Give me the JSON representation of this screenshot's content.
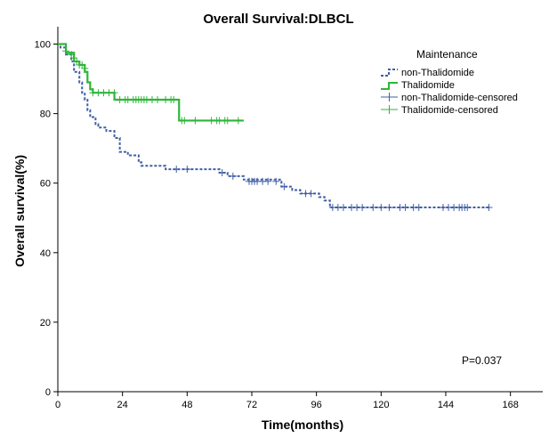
{
  "chart_data": {
    "type": "line",
    "subtype": "kaplan-meier-step",
    "title": "Overall Survival:DLBCL",
    "xlabel": "Time(months)",
    "ylabel": "Overall survival(%)",
    "xlim": [
      0,
      180
    ],
    "ylim": [
      0,
      105
    ],
    "xticks": [
      0,
      24,
      48,
      72,
      96,
      120,
      144,
      168
    ],
    "yticks": [
      0,
      20,
      40,
      60,
      80,
      100
    ],
    "legend": {
      "title": "Maintenance",
      "placement": "top-right",
      "entries": [
        "non-Thalidomide",
        "Thalidomide",
        "non-Thalidomide-censored",
        "Thalidomide-censored"
      ]
    },
    "annotation": "P=0.037",
    "series": [
      {
        "name": "non-Thalidomide",
        "color": "#3f5ea6",
        "dashed": true,
        "steps": [
          [
            0,
            100
          ],
          [
            1,
            99
          ],
          [
            3,
            97
          ],
          [
            5,
            95
          ],
          [
            6,
            92
          ],
          [
            8,
            89
          ],
          [
            9,
            86
          ],
          [
            10,
            84
          ],
          [
            11,
            81
          ],
          [
            12,
            79
          ],
          [
            14,
            77
          ],
          [
            15,
            76
          ],
          [
            18,
            75
          ],
          [
            21,
            73
          ],
          [
            23,
            69
          ],
          [
            26,
            68
          ],
          [
            30,
            66
          ],
          [
            31,
            65
          ],
          [
            40,
            64
          ],
          [
            60,
            63
          ],
          [
            63,
            62
          ],
          [
            69,
            61
          ],
          [
            83,
            59
          ],
          [
            87,
            58
          ],
          [
            90,
            57
          ],
          [
            97,
            56
          ],
          [
            99,
            55
          ],
          [
            101,
            53
          ],
          [
            160,
            53
          ]
        ],
        "censored": [
          [
            44,
            64
          ],
          [
            48,
            64
          ],
          [
            61,
            63
          ],
          [
            65,
            62
          ],
          [
            71,
            60.5
          ],
          [
            72,
            60.5
          ],
          [
            73,
            60.5
          ],
          [
            74,
            60.5
          ],
          [
            76,
            60.5
          ],
          [
            78,
            60.5
          ],
          [
            81,
            60.5
          ],
          [
            84,
            59
          ],
          [
            92,
            57
          ],
          [
            94,
            57
          ],
          [
            102,
            53
          ],
          [
            104,
            53
          ],
          [
            106,
            53
          ],
          [
            109,
            53
          ],
          [
            111,
            53
          ],
          [
            113,
            53
          ],
          [
            117,
            53
          ],
          [
            120,
            53
          ],
          [
            123,
            53
          ],
          [
            127,
            53
          ],
          [
            129,
            53
          ],
          [
            132,
            53
          ],
          [
            134,
            53
          ],
          [
            143,
            53
          ],
          [
            145,
            53
          ],
          [
            147,
            53
          ],
          [
            149,
            53
          ],
          [
            150,
            53
          ],
          [
            151,
            53
          ],
          [
            152,
            53
          ],
          [
            160,
            53
          ]
        ]
      },
      {
        "name": "Thalidomide",
        "color": "#2fb53a",
        "dashed": false,
        "steps": [
          [
            0,
            100
          ],
          [
            3,
            97.5
          ],
          [
            6,
            95
          ],
          [
            8,
            94
          ],
          [
            10,
            92
          ],
          [
            11,
            89
          ],
          [
            12,
            87
          ],
          [
            13,
            86
          ],
          [
            21,
            84
          ],
          [
            45,
            78
          ],
          [
            69,
            78
          ]
        ],
        "censored": [
          [
            3,
            98
          ],
          [
            5,
            97
          ],
          [
            6,
            96
          ],
          [
            7,
            95
          ],
          [
            8,
            94
          ],
          [
            9,
            94
          ],
          [
            10,
            93
          ],
          [
            13,
            86
          ],
          [
            15,
            86
          ],
          [
            17,
            86
          ],
          [
            19,
            86
          ],
          [
            21,
            86
          ],
          [
            23,
            84
          ],
          [
            25,
            84
          ],
          [
            26,
            84
          ],
          [
            28,
            84
          ],
          [
            29,
            84
          ],
          [
            30,
            84
          ],
          [
            31,
            84
          ],
          [
            32,
            84
          ],
          [
            33,
            84
          ],
          [
            35,
            84
          ],
          [
            37,
            84
          ],
          [
            40,
            84
          ],
          [
            42,
            84
          ],
          [
            43,
            84
          ],
          [
            46,
            78
          ],
          [
            47,
            78
          ],
          [
            51,
            78
          ],
          [
            57,
            78
          ],
          [
            59,
            78
          ],
          [
            60,
            78
          ],
          [
            62,
            78
          ],
          [
            63,
            78
          ],
          [
            67,
            78
          ]
        ]
      }
    ]
  }
}
